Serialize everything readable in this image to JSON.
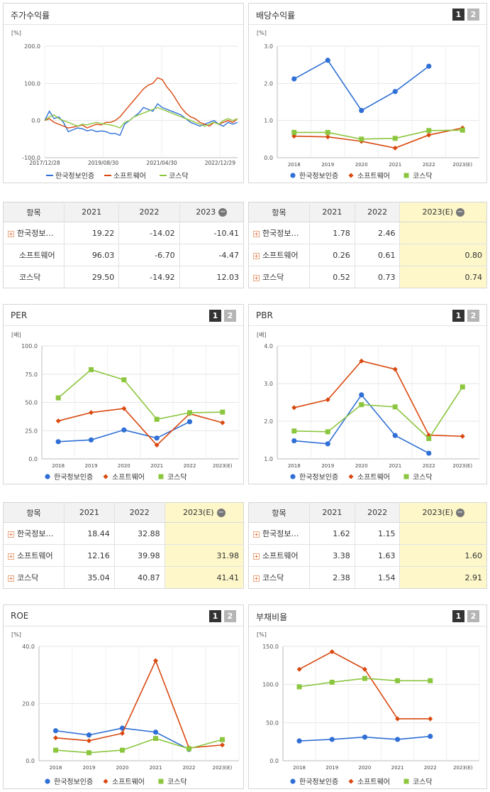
{
  "colors": {
    "s1": "#2f6fd6",
    "s2": "#d9480f",
    "s3": "#8cc63f"
  },
  "legend": [
    "한국정보인증",
    "소프트웨어",
    "코스닥"
  ],
  "panels": {
    "stock": {
      "title": "주가수익률",
      "unit": "[%]"
    },
    "div": {
      "title": "배당수익률",
      "unit": "[%]",
      "pages": [
        "1",
        "2"
      ]
    },
    "per": {
      "title": "PER",
      "unit": "[배]",
      "pages": [
        "1",
        "2"
      ]
    },
    "pbr": {
      "title": "PBR",
      "unit": "[배]",
      "pages": [
        "1",
        "2"
      ]
    },
    "roe": {
      "title": "ROE",
      "unit": "[%]",
      "pages": [
        "1",
        "2"
      ]
    },
    "debt": {
      "title": "부채비율",
      "unit": "[%]",
      "pages": [
        "1",
        "2"
      ]
    }
  },
  "tables": {
    "stock": {
      "headers": [
        "항목",
        "2021",
        "2022",
        "2023"
      ],
      "rows": [
        {
          "name": "한국정보…",
          "plus": true,
          "values": [
            "19.22",
            "-14.02",
            "-10.41"
          ]
        },
        {
          "name": "소프트웨어",
          "plus": false,
          "values": [
            "96.03",
            "-6.70",
            "-4.47"
          ]
        },
        {
          "name": "코스닥",
          "plus": false,
          "values": [
            "29.50",
            "-14.92",
            "12.03"
          ]
        }
      ]
    },
    "div": {
      "headers": [
        "항목",
        "2021",
        "2022",
        "2023(E)"
      ],
      "rows": [
        {
          "name": "한국정보…",
          "plus": true,
          "values": [
            "1.78",
            "2.46",
            ""
          ]
        },
        {
          "name": "소프트웨어",
          "plus": true,
          "values": [
            "0.26",
            "0.61",
            "0.80"
          ]
        },
        {
          "name": "코스닥",
          "plus": true,
          "values": [
            "0.52",
            "0.73",
            "0.74"
          ]
        }
      ]
    },
    "per": {
      "headers": [
        "항목",
        "2021",
        "2022",
        "2023(E)"
      ],
      "rows": [
        {
          "name": "한국정보…",
          "plus": true,
          "values": [
            "18.44",
            "32.88",
            ""
          ]
        },
        {
          "name": "소프트웨어",
          "plus": true,
          "values": [
            "12.16",
            "39.98",
            "31.98"
          ]
        },
        {
          "name": "코스닥",
          "plus": true,
          "values": [
            "35.04",
            "40.87",
            "41.41"
          ]
        }
      ]
    },
    "pbr": {
      "headers": [
        "항목",
        "2021",
        "2022",
        "2023(E)"
      ],
      "rows": [
        {
          "name": "한국정보…",
          "plus": true,
          "values": [
            "1.62",
            "1.15",
            ""
          ]
        },
        {
          "name": "소프트웨어",
          "plus": true,
          "values": [
            "3.38",
            "1.63",
            "1.60"
          ]
        },
        {
          "name": "코스닥",
          "plus": true,
          "values": [
            "2.38",
            "1.54",
            "2.91"
          ]
        }
      ]
    }
  },
  "chart_data": [
    {
      "id": "stock",
      "type": "line",
      "x_ticks": [
        "2017/12/28",
        "2019/08/30",
        "2021/04/30",
        "2022/12/29"
      ],
      "y_ticks": [
        "200.0",
        "100.0",
        "0.0",
        "-100.0"
      ],
      "ylim": [
        -100,
        200
      ],
      "x": [
        "2017-12-28",
        "2018-02-15",
        "2018-04-05",
        "2018-05-24",
        "2018-07-12",
        "2018-08-30",
        "2018-10-18",
        "2018-12-06",
        "2019-01-24",
        "2019-03-14",
        "2019-05-02",
        "2019-06-20",
        "2019-08-08",
        "2019-09-26",
        "2019-11-14",
        "2020-01-02",
        "2020-02-20",
        "2020-04-09",
        "2020-05-28",
        "2020-07-16",
        "2020-09-03",
        "2020-10-22",
        "2020-12-10",
        "2021-01-28",
        "2021-03-18",
        "2021-05-06",
        "2021-06-24",
        "2021-08-12",
        "2021-09-30",
        "2021-11-18",
        "2022-01-06",
        "2022-02-24",
        "2022-04-14",
        "2022-06-02",
        "2022-07-21",
        "2022-09-08",
        "2022-10-27",
        "2022-12-15",
        "2023-02-02",
        "2023-03-23",
        "2023-05-11",
        "2023-06-29"
      ],
      "series": [
        {
          "name": "한국정보인증",
          "values": [
            0,
            25,
            5,
            10,
            -5,
            -30,
            -25,
            -20,
            -22,
            -28,
            -25,
            -30,
            -28,
            -30,
            -35,
            -35,
            -40,
            -10,
            0,
            10,
            20,
            35,
            30,
            25,
            45,
            35,
            30,
            25,
            20,
            15,
            5,
            -5,
            -10,
            -15,
            -10,
            -5,
            0,
            -10,
            -15,
            -5,
            -10,
            -5
          ]
        },
        {
          "name": "소프트웨어",
          "values": [
            0,
            5,
            -5,
            -10,
            -15,
            -20,
            -18,
            -15,
            -12,
            -20,
            -15,
            -10,
            -12,
            -5,
            -5,
            0,
            10,
            25,
            40,
            55,
            70,
            85,
            95,
            100,
            115,
            110,
            90,
            75,
            55,
            35,
            20,
            10,
            5,
            -5,
            -10,
            -15,
            -5,
            -10,
            -5,
            0,
            -5,
            5
          ]
        },
        {
          "name": "코스닥",
          "values": [
            0,
            10,
            15,
            5,
            0,
            -5,
            -10,
            -15,
            -10,
            -12,
            -8,
            -5,
            -8,
            -10,
            -12,
            -15,
            -20,
            -5,
            0,
            10,
            15,
            20,
            25,
            30,
            35,
            30,
            25,
            20,
            15,
            10,
            5,
            0,
            -5,
            -10,
            -15,
            -10,
            -5,
            -10,
            0,
            5,
            0,
            5
          ]
        }
      ]
    },
    {
      "id": "div",
      "type": "line",
      "categories": [
        "2018",
        "2019",
        "2020",
        "2021",
        "2022",
        "2023(E)"
      ],
      "y_ticks": [
        "3.0",
        "2.0",
        "1.0",
        "0.0"
      ],
      "ylim": [
        0,
        3
      ],
      "series": [
        {
          "name": "한국정보인증",
          "values": [
            2.12,
            2.62,
            1.27,
            1.78,
            2.46,
            null
          ]
        },
        {
          "name": "소프트웨어",
          "values": [
            0.58,
            0.56,
            0.44,
            0.26,
            0.61,
            0.8
          ]
        },
        {
          "name": "코스닥",
          "values": [
            0.68,
            0.68,
            0.5,
            0.52,
            0.73,
            0.74
          ]
        }
      ]
    },
    {
      "id": "per",
      "type": "line",
      "categories": [
        "2018",
        "2019",
        "2020",
        "2021",
        "2022",
        "2023(E)"
      ],
      "y_ticks": [
        "100.0",
        "75.0",
        "50.0",
        "25.0",
        "0.0"
      ],
      "ylim": [
        0,
        100
      ],
      "series": [
        {
          "name": "한국정보인증",
          "values": [
            15.2,
            16.8,
            25.6,
            18.44,
            32.88,
            null
          ]
        },
        {
          "name": "소프트웨어",
          "values": [
            33.6,
            41.0,
            44.6,
            12.16,
            39.98,
            31.98
          ]
        },
        {
          "name": "코스닥",
          "values": [
            54.0,
            79.0,
            70.0,
            35.04,
            40.87,
            41.41
          ]
        }
      ]
    },
    {
      "id": "pbr",
      "type": "line",
      "categories": [
        "2018",
        "2019",
        "2020",
        "2021",
        "2022",
        "2023(E)"
      ],
      "y_ticks": [
        "4.0",
        "3.0",
        "2.0",
        "1.0"
      ],
      "ylim": [
        1,
        4
      ],
      "series": [
        {
          "name": "한국정보인증",
          "values": [
            1.48,
            1.4,
            2.7,
            1.62,
            1.15,
            null
          ]
        },
        {
          "name": "소프트웨어",
          "values": [
            2.36,
            2.57,
            3.6,
            3.38,
            1.63,
            1.6
          ]
        },
        {
          "name": "코스닥",
          "values": [
            1.74,
            1.72,
            2.44,
            2.38,
            1.54,
            2.91
          ]
        }
      ]
    },
    {
      "id": "roe",
      "type": "line",
      "categories": [
        "2018",
        "2019",
        "2020",
        "2021",
        "2022",
        "2023(E)"
      ],
      "y_ticks": [
        "40.0",
        "20.0",
        "0.0"
      ],
      "ylim": [
        0,
        40
      ],
      "series": [
        {
          "name": "한국정보인증",
          "values": [
            10.5,
            9.0,
            11.4,
            10.0,
            4.0,
            null
          ]
        },
        {
          "name": "소프트웨어",
          "values": [
            8.0,
            7.0,
            9.6,
            35.0,
            4.5,
            5.5
          ]
        },
        {
          "name": "코스닥",
          "values": [
            3.7,
            2.8,
            3.7,
            7.8,
            4.2,
            7.4
          ]
        }
      ]
    },
    {
      "id": "debt",
      "type": "line",
      "categories": [
        "2018",
        "2019",
        "2020",
        "2021",
        "2022",
        "2023(E)"
      ],
      "y_ticks": [
        "150.0",
        "100.0",
        "50.0",
        "0.0"
      ],
      "ylim": [
        0,
        150
      ],
      "series": [
        {
          "name": "한국정보인증",
          "values": [
            26,
            28,
            31,
            28,
            32,
            null
          ]
        },
        {
          "name": "소프트웨어",
          "values": [
            120,
            143,
            120,
            55,
            55,
            null
          ]
        },
        {
          "name": "코스닥",
          "values": [
            97,
            103,
            108,
            105,
            105,
            null
          ]
        }
      ]
    }
  ]
}
